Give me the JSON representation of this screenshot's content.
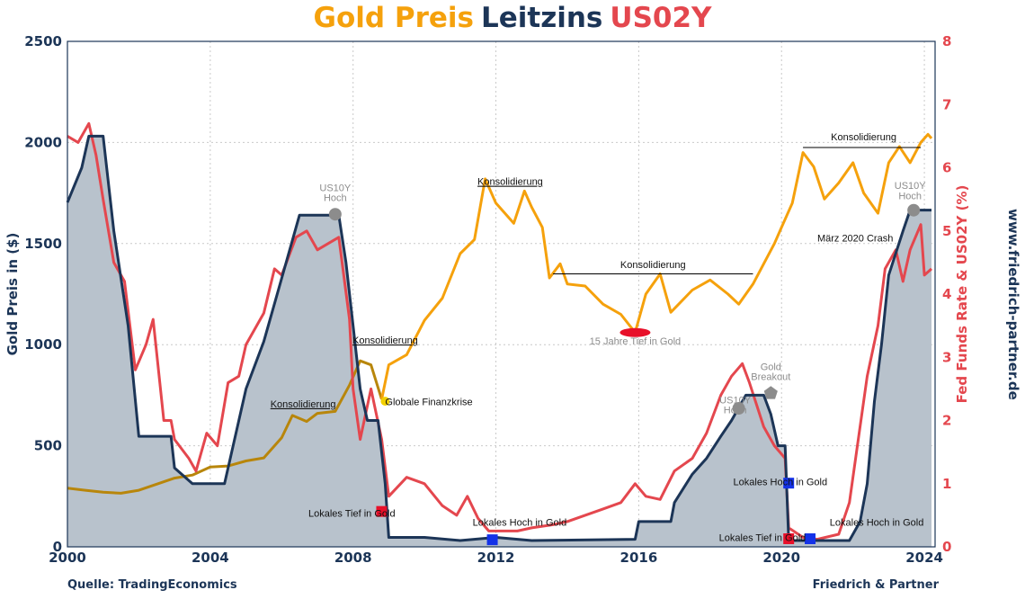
{
  "header": {
    "title_gold": "Gold Preis",
    "title_leitzins": "Leitzins",
    "title_us02y": "US02Y"
  },
  "footer": {
    "source": "Quelle: TradingEconomics",
    "author": "Friedrich & Partner"
  },
  "side_text": "www.friedrich-partner.de",
  "colors": {
    "gold_dark": "#b8860b",
    "gold": "#f5a10c",
    "leitzins": "#1c3557",
    "leitzins_fill": "#b8c2cc",
    "us02y": "#e4474e",
    "marker_red": "#e8102a",
    "marker_blue": "#1432e8",
    "marker_grey": "#8c8c8c"
  },
  "chart_data": {
    "type": "line",
    "title": "Gold Preis Leitzins US02Y",
    "xlabel": "",
    "ylabel_left": "Gold Preis in ($)",
    "ylabel_right": "Fed Funds Rate & US02Y (%)",
    "xlim": [
      2000,
      2024.3
    ],
    "ylim_left": [
      0,
      2500
    ],
    "ylim_right": [
      0,
      8
    ],
    "x_ticks": [
      "2000",
      "2004",
      "2008",
      "2012",
      "2016",
      "2020",
      "2024"
    ],
    "y_ticks_left": [
      "0",
      "500",
      "1000",
      "1500",
      "2000",
      "2500"
    ],
    "y_ticks_right": [
      "0",
      "1",
      "2",
      "3",
      "4",
      "5",
      "6",
      "7",
      "8"
    ],
    "grid": true,
    "series": [
      {
        "name": "Gold Preis",
        "axis": "left",
        "points": [
          [
            2000,
            290
          ],
          [
            2000.5,
            280
          ],
          [
            2001,
            270
          ],
          [
            2001.5,
            265
          ],
          [
            2002,
            280
          ],
          [
            2002.5,
            310
          ],
          [
            2003,
            340
          ],
          [
            2003.5,
            355
          ],
          [
            2004,
            395
          ],
          [
            2004.5,
            400
          ],
          [
            2005,
            425
          ],
          [
            2005.5,
            440
          ],
          [
            2006,
            540
          ],
          [
            2006.3,
            650
          ],
          [
            2006.7,
            620
          ],
          [
            2007,
            660
          ],
          [
            2007.5,
            670
          ],
          [
            2007.9,
            800
          ],
          [
            2008.2,
            920
          ],
          [
            2008.5,
            900
          ],
          [
            2008.8,
            730
          ],
          [
            2009,
            900
          ],
          [
            2009.5,
            950
          ],
          [
            2010,
            1120
          ],
          [
            2010.5,
            1230
          ],
          [
            2011,
            1450
          ],
          [
            2011.4,
            1520
          ],
          [
            2011.7,
            1820
          ],
          [
            2012,
            1700
          ],
          [
            2012.5,
            1600
          ],
          [
            2012.8,
            1760
          ],
          [
            2013,
            1680
          ],
          [
            2013.3,
            1580
          ],
          [
            2013.5,
            1330
          ],
          [
            2013.8,
            1400
          ],
          [
            2014,
            1300
          ],
          [
            2014.5,
            1290
          ],
          [
            2015,
            1200
          ],
          [
            2015.5,
            1150
          ],
          [
            2015.9,
            1060
          ],
          [
            2016.2,
            1250
          ],
          [
            2016.6,
            1350
          ],
          [
            2016.9,
            1160
          ],
          [
            2017.5,
            1270
          ],
          [
            2018,
            1320
          ],
          [
            2018.5,
            1250
          ],
          [
            2018.8,
            1200
          ],
          [
            2019.2,
            1300
          ],
          [
            2019.5,
            1400
          ],
          [
            2019.8,
            1500
          ],
          [
            2020,
            1580
          ],
          [
            2020.3,
            1700
          ],
          [
            2020.6,
            1950
          ],
          [
            2020.9,
            1880
          ],
          [
            2021.2,
            1720
          ],
          [
            2021.6,
            1800
          ],
          [
            2022,
            1900
          ],
          [
            2022.3,
            1750
          ],
          [
            2022.7,
            1650
          ],
          [
            2023,
            1900
          ],
          [
            2023.3,
            1980
          ],
          [
            2023.6,
            1900
          ],
          [
            2023.9,
            2000
          ],
          [
            2024.1,
            2040
          ],
          [
            2024.2,
            2020
          ]
        ]
      },
      {
        "name": "Leitzins",
        "axis": "right",
        "points": [
          [
            2000,
            5.45
          ],
          [
            2000.4,
            6.0
          ],
          [
            2000.6,
            6.5
          ],
          [
            2001,
            6.5
          ],
          [
            2001.3,
            5.0
          ],
          [
            2001.7,
            3.5
          ],
          [
            2002,
            1.75
          ],
          [
            2002.5,
            1.75
          ],
          [
            2002.9,
            1.75
          ],
          [
            2003,
            1.25
          ],
          [
            2003.5,
            1.0
          ],
          [
            2004,
            1.0
          ],
          [
            2004.4,
            1.0
          ],
          [
            2004.6,
            1.5
          ],
          [
            2005,
            2.5
          ],
          [
            2005.5,
            3.25
          ],
          [
            2006,
            4.25
          ],
          [
            2006.5,
            5.25
          ],
          [
            2007,
            5.25
          ],
          [
            2007.6,
            5.25
          ],
          [
            2007.8,
            4.5
          ],
          [
            2008,
            3.5
          ],
          [
            2008.2,
            2.5
          ],
          [
            2008.4,
            2.0
          ],
          [
            2008.7,
            2.0
          ],
          [
            2008.9,
            1.0
          ],
          [
            2009,
            0.15
          ],
          [
            2010,
            0.15
          ],
          [
            2011,
            0.1
          ],
          [
            2012,
            0.15
          ],
          [
            2013,
            0.1
          ],
          [
            2015.9,
            0.12
          ],
          [
            2016,
            0.4
          ],
          [
            2016.9,
            0.4
          ],
          [
            2017,
            0.7
          ],
          [
            2017.5,
            1.15
          ],
          [
            2017.9,
            1.4
          ],
          [
            2018.3,
            1.75
          ],
          [
            2018.6,
            2.0
          ],
          [
            2019,
            2.4
          ],
          [
            2019.5,
            2.4
          ],
          [
            2019.7,
            2.1
          ],
          [
            2019.9,
            1.6
          ],
          [
            2020.1,
            1.6
          ],
          [
            2020.2,
            0.1
          ],
          [
            2021.9,
            0.1
          ],
          [
            2022.2,
            0.4
          ],
          [
            2022.4,
            1.0
          ],
          [
            2022.6,
            2.3
          ],
          [
            2022.8,
            3.2
          ],
          [
            2023,
            4.3
          ],
          [
            2023.4,
            5.0
          ],
          [
            2023.6,
            5.33
          ],
          [
            2024.2,
            5.33
          ]
        ]
      },
      {
        "name": "US02Y",
        "axis": "right",
        "points": [
          [
            2000,
            6.5
          ],
          [
            2000.3,
            6.4
          ],
          [
            2000.6,
            6.7
          ],
          [
            2000.8,
            6.2
          ],
          [
            2001,
            5.5
          ],
          [
            2001.3,
            4.5
          ],
          [
            2001.6,
            4.2
          ],
          [
            2001.9,
            2.8
          ],
          [
            2002.2,
            3.2
          ],
          [
            2002.4,
            3.6
          ],
          [
            2002.7,
            2.0
          ],
          [
            2002.9,
            2.0
          ],
          [
            2003,
            1.7
          ],
          [
            2003.4,
            1.4
          ],
          [
            2003.6,
            1.2
          ],
          [
            2003.9,
            1.8
          ],
          [
            2004.2,
            1.6
          ],
          [
            2004.5,
            2.6
          ],
          [
            2004.8,
            2.7
          ],
          [
            2005,
            3.2
          ],
          [
            2005.5,
            3.7
          ],
          [
            2005.8,
            4.4
          ],
          [
            2006,
            4.3
          ],
          [
            2006.4,
            4.9
          ],
          [
            2006.7,
            5.0
          ],
          [
            2007,
            4.7
          ],
          [
            2007.3,
            4.8
          ],
          [
            2007.6,
            4.9
          ],
          [
            2007.9,
            3.6
          ],
          [
            2008,
            2.5
          ],
          [
            2008.2,
            1.7
          ],
          [
            2008.5,
            2.5
          ],
          [
            2008.8,
            1.7
          ],
          [
            2009,
            0.8
          ],
          [
            2009.5,
            1.1
          ],
          [
            2010,
            1.0
          ],
          [
            2010.5,
            0.65
          ],
          [
            2010.9,
            0.5
          ],
          [
            2011.2,
            0.8
          ],
          [
            2011.5,
            0.45
          ],
          [
            2011.8,
            0.25
          ],
          [
            2012,
            0.25
          ],
          [
            2012.6,
            0.25
          ],
          [
            2013,
            0.3
          ],
          [
            2013.6,
            0.35
          ],
          [
            2014,
            0.4
          ],
          [
            2014.5,
            0.5
          ],
          [
            2015,
            0.6
          ],
          [
            2015.5,
            0.7
          ],
          [
            2015.9,
            1.0
          ],
          [
            2016.2,
            0.8
          ],
          [
            2016.6,
            0.75
          ],
          [
            2017,
            1.2
          ],
          [
            2017.5,
            1.4
          ],
          [
            2017.9,
            1.8
          ],
          [
            2018.3,
            2.4
          ],
          [
            2018.6,
            2.7
          ],
          [
            2018.9,
            2.9
          ],
          [
            2019.1,
            2.6
          ],
          [
            2019.5,
            1.9
          ],
          [
            2019.8,
            1.6
          ],
          [
            2020.1,
            1.4
          ],
          [
            2020.2,
            0.3
          ],
          [
            2020.6,
            0.15
          ],
          [
            2021,
            0.12
          ],
          [
            2021.6,
            0.2
          ],
          [
            2021.9,
            0.7
          ],
          [
            2022.1,
            1.5
          ],
          [
            2022.4,
            2.7
          ],
          [
            2022.7,
            3.5
          ],
          [
            2022.9,
            4.4
          ],
          [
            2023.2,
            4.7
          ],
          [
            2023.4,
            4.2
          ],
          [
            2023.6,
            4.7
          ],
          [
            2023.9,
            5.1
          ],
          [
            2024,
            4.3
          ],
          [
            2024.2,
            4.4
          ]
        ]
      }
    ],
    "annotations": [
      {
        "text": "Konsolidierung",
        "x": 2006.6,
        "y": 690,
        "underline": true
      },
      {
        "text": "Konsolidierung",
        "x": 2008.9,
        "y": 1005,
        "underline": true
      },
      {
        "text": "Globale Finanzkrise",
        "x": 2008.9,
        "y": 700
      },
      {
        "text": "Konsolidierung",
        "x": 2012.4,
        "y": 1790,
        "underline": true
      },
      {
        "text": "Konsolidierung",
        "x": 2016.4,
        "y": 1380
      },
      {
        "text": "15 Jahre Tief in Gold",
        "x": 2015.9,
        "y": 1000
      },
      {
        "text": "Konsolidierung",
        "x": 2022.3,
        "y": 2010
      },
      {
        "text": "März 2020 Crash",
        "x": 2021.0,
        "y": 1510
      },
      {
        "text": "US10Y",
        "x": 2007.5,
        "y": 1760
      },
      {
        "text": "Hoch",
        "x": 2007.5,
        "y": 1710
      },
      {
        "text": "US10Y",
        "x": 2018.7,
        "y": 710
      },
      {
        "text": "Hoch",
        "x": 2018.7,
        "y": 660
      },
      {
        "text": "Gold",
        "x": 2019.7,
        "y": 875
      },
      {
        "text": "Breakout",
        "x": 2019.7,
        "y": 825
      },
      {
        "text": "US10Y",
        "x": 2023.6,
        "y": 1770
      },
      {
        "text": "Hoch",
        "x": 2023.6,
        "y": 1720
      },
      {
        "text": "Lokales Tief in Gold",
        "x": 2007.0,
        "y": 150
      },
      {
        "text": "Lokales Hoch in Gold",
        "x": 2011.6,
        "y": 105
      },
      {
        "text": "Lokales Hoch in Gold",
        "x": 2018.9,
        "y": 305
      },
      {
        "text": "Lokales Tief in Gold",
        "x": 2018.5,
        "y": 30
      },
      {
        "text": "Lokales Hoch in Gold",
        "x": 2021.6,
        "y": 105
      }
    ]
  }
}
